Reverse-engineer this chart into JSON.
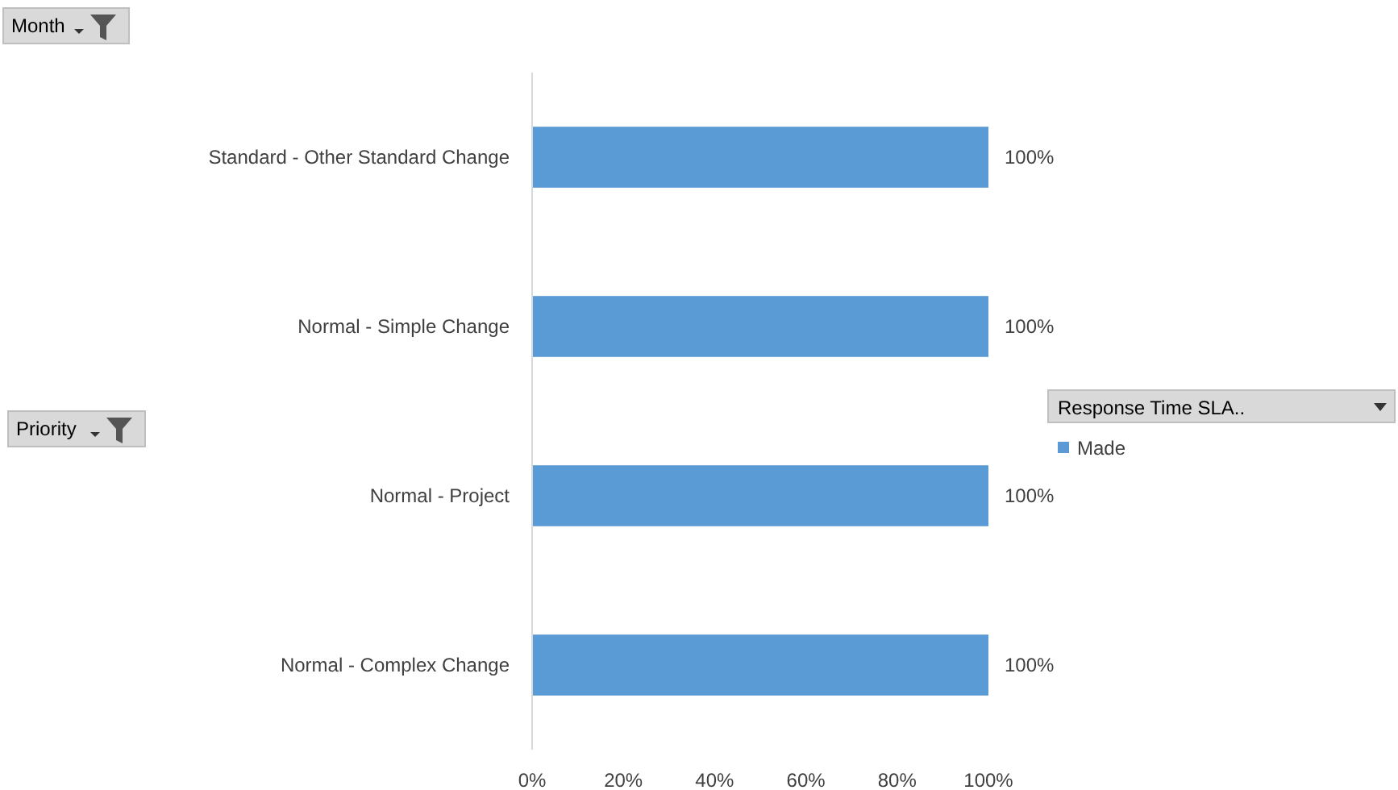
{
  "chart_data": {
    "type": "bar",
    "orientation": "horizontal",
    "categories": [
      "Standard - Other Standard Change",
      "Normal - Simple Change",
      "Normal - Project",
      "Normal - Complex Change"
    ],
    "series": [
      {
        "name": "Made",
        "color": "#5b9bd5",
        "values": [
          100,
          100,
          100,
          100
        ],
        "value_labels": [
          "100%",
          "100%",
          "100%",
          "100%"
        ]
      }
    ],
    "xlim": [
      0,
      100
    ],
    "xticks": [
      {
        "value": 0,
        "label": "0%"
      },
      {
        "value": 20,
        "label": "20%"
      },
      {
        "value": 40,
        "label": "40%"
      },
      {
        "value": 60,
        "label": "60%"
      },
      {
        "value": 80,
        "label": "80%"
      },
      {
        "value": 100,
        "label": "100%"
      }
    ],
    "legend": "right",
    "legend_title": "Response Time SLA..",
    "grid": false,
    "annotations": [
      "Month",
      "Priority"
    ]
  }
}
